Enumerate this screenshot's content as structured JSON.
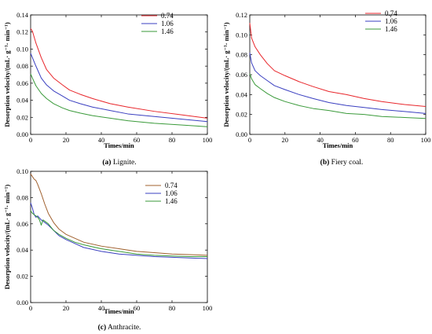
{
  "chart_data": [
    {
      "type": "line",
      "caption": {
        "letter": "(a)",
        "text": " Lignite."
      },
      "xlabel": "Times/min",
      "ylabel": "Desorption velocity/(mL· g⁻¹· min⁻¹)",
      "xlim": [
        0,
        100
      ],
      "ylim": [
        0,
        0.14
      ],
      "xticks": [
        0,
        20,
        40,
        60,
        80,
        100
      ],
      "xtick_labels": [
        "0",
        "20",
        "40",
        "60",
        "80",
        "100"
      ],
      "yticks": [
        0,
        0.02,
        0.04,
        0.06,
        0.08,
        0.1,
        0.12,
        0.14
      ],
      "ytick_labels": [
        "0.00",
        "0.02",
        "0.04",
        "0.06",
        "0.08",
        "0.10",
        "0.12",
        "0.14"
      ],
      "legend_position": "top-right",
      "grid": false,
      "series": [
        {
          "name": "0.74",
          "color": "#e8262b",
          "x": [
            0,
            1,
            3,
            6,
            9,
            13,
            18,
            22,
            28,
            35,
            45,
            55,
            70,
            85,
            100
          ],
          "y": [
            0.124,
            0.121,
            0.107,
            0.09,
            0.076,
            0.066,
            0.058,
            0.052,
            0.047,
            0.042,
            0.036,
            0.032,
            0.027,
            0.023,
            0.019
          ]
        },
        {
          "name": "1.06",
          "color": "#3a3fc0",
          "x": [
            0,
            1,
            3,
            6,
            9,
            13,
            18,
            22,
            28,
            35,
            45,
            55,
            70,
            85,
            100
          ],
          "y": [
            0.095,
            0.09,
            0.08,
            0.066,
            0.058,
            0.051,
            0.045,
            0.04,
            0.036,
            0.032,
            0.028,
            0.024,
            0.021,
            0.018,
            0.015
          ]
        },
        {
          "name": "1.46",
          "color": "#3a9a3a",
          "x": [
            0,
            1,
            3,
            6,
            9,
            13,
            18,
            22,
            28,
            35,
            45,
            55,
            70,
            85,
            100
          ],
          "y": [
            0.071,
            0.066,
            0.057,
            0.048,
            0.042,
            0.036,
            0.031,
            0.028,
            0.025,
            0.022,
            0.019,
            0.016,
            0.013,
            0.011,
            0.009
          ]
        }
      ]
    },
    {
      "type": "line",
      "caption": {
        "letter": "(b)",
        "text": " Fiery coal."
      },
      "xlabel": "Times/min",
      "ylabel": "Desorption velocity/(mL· g⁻¹· min⁻¹)",
      "xlim": [
        0,
        100
      ],
      "ylim": [
        0,
        0.12
      ],
      "xticks": [
        0,
        20,
        40,
        60,
        80,
        100
      ],
      "xtick_labels": [
        "0",
        "20",
        "40",
        "60",
        "80",
        "100"
      ],
      "yticks": [
        0,
        0.02,
        0.04,
        0.06,
        0.08,
        0.1,
        0.12
      ],
      "ytick_labels": [
        "0.00",
        "0.02",
        "0.04",
        "0.06",
        "0.08",
        "0.10",
        "0.12"
      ],
      "legend_position": "top-right",
      "grid": false,
      "series": [
        {
          "name": "0.74",
          "color": "#e8262b",
          "x": [
            0,
            1,
            3,
            6,
            10,
            14,
            20,
            28,
            36,
            45,
            55,
            65,
            75,
            88,
            100
          ],
          "y": [
            0.112,
            0.097,
            0.088,
            0.08,
            0.071,
            0.064,
            0.059,
            0.053,
            0.048,
            0.043,
            0.04,
            0.036,
            0.033,
            0.03,
            0.028
          ]
        },
        {
          "name": "1.06",
          "color": "#3a3fc0",
          "x": [
            0,
            1,
            3,
            6,
            10,
            14,
            20,
            28,
            36,
            45,
            55,
            65,
            75,
            88,
            100
          ],
          "y": [
            0.082,
            0.072,
            0.064,
            0.059,
            0.054,
            0.049,
            0.045,
            0.04,
            0.036,
            0.032,
            0.029,
            0.027,
            0.025,
            0.023,
            0.021
          ]
        },
        {
          "name": "1.46",
          "color": "#3a9a3a",
          "x": [
            0,
            1,
            3,
            6,
            10,
            14,
            20,
            28,
            36,
            45,
            55,
            65,
            75,
            88,
            100
          ],
          "y": [
            0.061,
            0.056,
            0.05,
            0.046,
            0.041,
            0.037,
            0.033,
            0.029,
            0.026,
            0.024,
            0.021,
            0.02,
            0.018,
            0.017,
            0.016
          ]
        }
      ]
    },
    {
      "type": "line",
      "caption": {
        "letter": "(c)",
        "text": " Anthracite."
      },
      "xlabel": "Times/min",
      "ylabel": "Desorption velocity/(mL· g⁻¹· min⁻¹)",
      "xlim": [
        0,
        100
      ],
      "ylim": [
        0,
        0.1
      ],
      "xticks": [
        0,
        20,
        40,
        60,
        80,
        100
      ],
      "xtick_labels": [
        "0",
        "20",
        "40",
        "60",
        "80",
        "100"
      ],
      "yticks": [
        0,
        0.02,
        0.04,
        0.06,
        0.08,
        0.1
      ],
      "ytick_labels": [
        "0.00",
        "0.02",
        "0.04",
        "0.06",
        "0.08",
        "0.10"
      ],
      "legend_position": "top-right",
      "grid": false,
      "series": [
        {
          "name": "0.74",
          "color": "#a0602e",
          "x": [
            0,
            1,
            2,
            3,
            4,
            6,
            8,
            10,
            13,
            16,
            20,
            25,
            30,
            40,
            50,
            60,
            70,
            80,
            90,
            100
          ],
          "y": [
            0.098,
            0.096,
            0.094,
            0.093,
            0.09,
            0.083,
            0.075,
            0.068,
            0.061,
            0.056,
            0.052,
            0.049,
            0.046,
            0.043,
            0.041,
            0.039,
            0.038,
            0.037,
            0.0365,
            0.036
          ]
        },
        {
          "name": "1.06",
          "color": "#3a3fc0",
          "x": [
            0,
            1,
            2,
            3,
            4,
            6,
            8,
            10,
            13,
            16,
            20,
            25,
            30,
            40,
            50,
            60,
            70,
            80,
            90,
            100
          ],
          "y": [
            0.076,
            0.072,
            0.067,
            0.065,
            0.066,
            0.063,
            0.061,
            0.059,
            0.055,
            0.051,
            0.048,
            0.045,
            0.042,
            0.039,
            0.037,
            0.036,
            0.035,
            0.0345,
            0.034,
            0.0335
          ]
        },
        {
          "name": "1.46",
          "color": "#3a9a3a",
          "x": [
            0,
            1,
            2,
            3,
            4,
            5,
            6,
            7,
            8,
            10,
            13,
            16,
            20,
            25,
            30,
            40,
            50,
            60,
            70,
            80,
            90,
            100
          ],
          "y": [
            0.07,
            0.068,
            0.067,
            0.066,
            0.065,
            0.063,
            0.059,
            0.063,
            0.062,
            0.06,
            0.055,
            0.052,
            0.049,
            0.046,
            0.044,
            0.041,
            0.039,
            0.037,
            0.036,
            0.0355,
            0.035,
            0.035
          ]
        }
      ]
    }
  ]
}
